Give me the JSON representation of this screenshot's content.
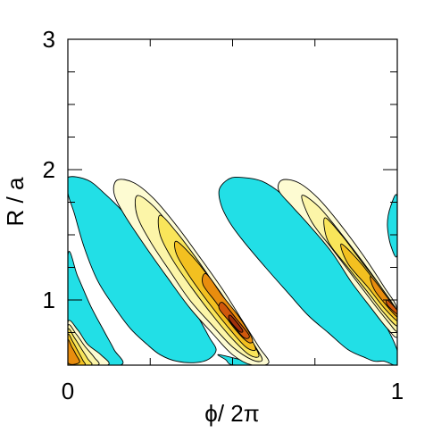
{
  "chart_data": {
    "type": "heatmap",
    "title": "",
    "xlabel": "ϕ/ 2π",
    "ylabel": "R / a",
    "xlim": [
      0,
      1
    ],
    "ylim": [
      0.5,
      3
    ],
    "x_ticks": [
      {
        "value": 0,
        "label": "0"
      },
      {
        "value": 1,
        "label": "1"
      }
    ],
    "y_ticks": [
      {
        "value": 1,
        "label": "1"
      },
      {
        "value": 2,
        "label": "2"
      },
      {
        "value": 3,
        "label": "3"
      }
    ],
    "x_minor_ticks": [
      0.25,
      0.5,
      0.75
    ],
    "y_minor_ticks": [
      0.5,
      0.75,
      1.25,
      1.5,
      1.75,
      2.25,
      2.5,
      2.75
    ],
    "grid": false,
    "legend": "none",
    "colors": {
      "negative_fill": "#22dfe6",
      "positive_levels": [
        "#fdfbd2",
        "#fcf5a8",
        "#f9e55a",
        "#f3c020",
        "#e88d0e",
        "#d0580c",
        "#a0300c"
      ],
      "contour_line": "#000000"
    },
    "features": [
      {
        "kind": "negative",
        "points": [
          [
            0.0,
            0.5
          ],
          [
            0.0,
            1.34
          ],
          [
            0.03,
            1.18
          ],
          [
            0.07,
            0.95
          ],
          [
            0.11,
            0.76
          ],
          [
            0.14,
            0.62
          ],
          [
            0.16,
            0.5
          ]
        ]
      },
      {
        "kind": "negative",
        "points": [
          [
            0.0,
            1.94
          ],
          [
            0.06,
            1.92
          ],
          [
            0.11,
            1.82
          ],
          [
            0.17,
            1.67
          ],
          [
            0.24,
            1.46
          ],
          [
            0.3,
            1.25
          ],
          [
            0.36,
            1.03
          ],
          [
            0.4,
            0.85
          ],
          [
            0.43,
            0.71
          ],
          [
            0.45,
            0.62
          ],
          [
            0.43,
            0.55
          ],
          [
            0.39,
            0.52
          ],
          [
            0.33,
            0.53
          ],
          [
            0.28,
            0.58
          ],
          [
            0.24,
            0.66
          ],
          [
            0.19,
            0.78
          ],
          [
            0.14,
            0.95
          ],
          [
            0.09,
            1.15
          ],
          [
            0.05,
            1.4
          ],
          [
            0.02,
            1.66
          ],
          [
            0.0,
            1.82
          ]
        ]
      },
      {
        "kind": "negative",
        "points": [
          [
            0.58,
            0.5
          ],
          [
            0.51,
            0.5
          ],
          [
            0.49,
            0.51
          ],
          [
            0.48,
            0.54
          ],
          [
            0.46,
            0.58
          ]
        ]
      },
      {
        "kind": "negative",
        "points": [
          [
            0.465,
            1.73
          ],
          [
            0.46,
            1.85
          ],
          [
            0.49,
            1.93
          ],
          [
            0.53,
            1.94
          ],
          [
            0.59,
            1.91
          ],
          [
            0.65,
            1.81
          ],
          [
            0.72,
            1.63
          ],
          [
            0.79,
            1.43
          ],
          [
            0.86,
            1.2
          ],
          [
            0.92,
            0.99
          ],
          [
            0.97,
            0.78
          ],
          [
            1.0,
            0.61
          ],
          [
            1.0,
            0.5
          ],
          [
            0.99,
            0.5
          ],
          [
            0.96,
            0.53
          ],
          [
            0.93,
            0.53
          ],
          [
            0.9,
            0.56
          ],
          [
            0.85,
            0.62
          ],
          [
            0.79,
            0.75
          ],
          [
            0.73,
            0.88
          ],
          [
            0.67,
            1.05
          ],
          [
            0.6,
            1.25
          ],
          [
            0.53,
            1.46
          ],
          [
            0.49,
            1.6
          ]
        ]
      },
      {
        "kind": "negative",
        "points": [
          [
            1.0,
            1.35
          ],
          [
            0.98,
            1.42
          ],
          [
            0.97,
            1.58
          ],
          [
            0.98,
            1.72
          ],
          [
            1.0,
            1.79
          ]
        ]
      },
      {
        "kind": "positive",
        "level": 0,
        "points": [
          [
            0.0,
            0.83
          ],
          [
            0.03,
            0.77
          ],
          [
            0.06,
            0.66
          ],
          [
            0.1,
            0.58
          ],
          [
            0.12,
            0.5
          ],
          [
            0.0,
            0.5
          ]
        ]
      },
      {
        "kind": "positive",
        "level": 1,
        "points": [
          [
            0.0,
            0.8
          ],
          [
            0.025,
            0.74
          ],
          [
            0.05,
            0.65
          ],
          [
            0.08,
            0.56
          ],
          [
            0.09,
            0.5
          ],
          [
            0.0,
            0.5
          ]
        ]
      },
      {
        "kind": "positive",
        "level": 2,
        "points": [
          [
            0.0,
            0.77
          ],
          [
            0.02,
            0.71
          ],
          [
            0.04,
            0.63
          ],
          [
            0.06,
            0.55
          ],
          [
            0.07,
            0.5
          ],
          [
            0.0,
            0.5
          ]
        ]
      },
      {
        "kind": "positive",
        "level": 3,
        "points": [
          [
            0.0,
            0.73
          ],
          [
            0.015,
            0.68
          ],
          [
            0.03,
            0.61
          ],
          [
            0.045,
            0.54
          ],
          [
            0.05,
            0.5
          ],
          [
            0.0,
            0.5
          ]
        ]
      },
      {
        "kind": "positive",
        "level": 4,
        "points": [
          [
            0.0,
            0.69
          ],
          [
            0.012,
            0.64
          ],
          [
            0.025,
            0.58
          ],
          [
            0.035,
            0.52
          ],
          [
            0.0,
            0.52
          ]
        ]
      },
      {
        "kind": "positive",
        "level": 0,
        "points": [
          [
            0.15,
            1.92
          ],
          [
            0.2,
            1.9
          ],
          [
            0.26,
            1.78
          ],
          [
            0.33,
            1.57
          ],
          [
            0.4,
            1.33
          ],
          [
            0.47,
            1.08
          ],
          [
            0.53,
            0.84
          ],
          [
            0.58,
            0.64
          ],
          [
            0.61,
            0.52
          ],
          [
            0.56,
            0.5
          ],
          [
            0.5,
            0.58
          ],
          [
            0.44,
            0.74
          ],
          [
            0.37,
            0.94
          ],
          [
            0.3,
            1.18
          ],
          [
            0.23,
            1.43
          ],
          [
            0.17,
            1.66
          ],
          [
            0.14,
            1.82
          ]
        ]
      },
      {
        "kind": "positive",
        "level": 1,
        "points": [
          [
            0.21,
            1.8
          ],
          [
            0.26,
            1.72
          ],
          [
            0.32,
            1.54
          ],
          [
            0.39,
            1.31
          ],
          [
            0.46,
            1.07
          ],
          [
            0.52,
            0.84
          ],
          [
            0.57,
            0.64
          ],
          [
            0.59,
            0.54
          ],
          [
            0.56,
            0.54
          ],
          [
            0.5,
            0.64
          ],
          [
            0.44,
            0.8
          ],
          [
            0.37,
            1.0
          ],
          [
            0.31,
            1.22
          ],
          [
            0.25,
            1.45
          ],
          [
            0.21,
            1.65
          ]
        ]
      },
      {
        "kind": "positive",
        "level": 2,
        "points": [
          [
            0.28,
            1.65
          ],
          [
            0.33,
            1.52
          ],
          [
            0.39,
            1.32
          ],
          [
            0.45,
            1.1
          ],
          [
            0.51,
            0.88
          ],
          [
            0.56,
            0.68
          ],
          [
            0.58,
            0.57
          ],
          [
            0.55,
            0.58
          ],
          [
            0.5,
            0.7
          ],
          [
            0.44,
            0.88
          ],
          [
            0.38,
            1.08
          ],
          [
            0.32,
            1.3
          ],
          [
            0.28,
            1.5
          ]
        ]
      },
      {
        "kind": "positive",
        "level": 3,
        "points": [
          [
            0.33,
            1.45
          ],
          [
            0.39,
            1.3
          ],
          [
            0.45,
            1.1
          ],
          [
            0.5,
            0.92
          ],
          [
            0.55,
            0.73
          ],
          [
            0.57,
            0.62
          ],
          [
            0.54,
            0.64
          ],
          [
            0.49,
            0.78
          ],
          [
            0.43,
            0.97
          ],
          [
            0.37,
            1.18
          ],
          [
            0.33,
            1.35
          ]
        ]
      },
      {
        "kind": "positive",
        "level": 4,
        "points": [
          [
            0.42,
            1.2
          ],
          [
            0.47,
            1.03
          ],
          [
            0.52,
            0.87
          ],
          [
            0.56,
            0.7
          ],
          [
            0.545,
            0.68
          ],
          [
            0.5,
            0.8
          ],
          [
            0.45,
            0.98
          ],
          [
            0.41,
            1.12
          ]
        ]
      },
      {
        "kind": "positive",
        "level": 5,
        "points": [
          [
            0.47,
            0.98
          ],
          [
            0.51,
            0.86
          ],
          [
            0.55,
            0.73
          ],
          [
            0.535,
            0.71
          ],
          [
            0.5,
            0.81
          ],
          [
            0.46,
            0.93
          ]
        ]
      },
      {
        "kind": "positive",
        "level": 6,
        "points": [
          [
            0.495,
            0.88
          ],
          [
            0.53,
            0.77
          ],
          [
            0.52,
            0.76
          ],
          [
            0.49,
            0.85
          ]
        ]
      },
      {
        "kind": "positive",
        "level": 0,
        "points": [
          [
            0.65,
            1.92
          ],
          [
            0.7,
            1.9
          ],
          [
            0.76,
            1.78
          ],
          [
            0.83,
            1.57
          ],
          [
            0.9,
            1.33
          ],
          [
            0.96,
            1.1
          ],
          [
            1.0,
            0.93
          ],
          [
            1.0,
            0.72
          ],
          [
            0.97,
            0.78
          ],
          [
            0.92,
            0.94
          ],
          [
            0.86,
            1.14
          ],
          [
            0.8,
            1.37
          ],
          [
            0.73,
            1.58
          ],
          [
            0.68,
            1.72
          ],
          [
            0.64,
            1.84
          ]
        ]
      },
      {
        "kind": "positive",
        "level": 1,
        "points": [
          [
            0.71,
            1.8
          ],
          [
            0.76,
            1.72
          ],
          [
            0.82,
            1.54
          ],
          [
            0.89,
            1.31
          ],
          [
            0.95,
            1.1
          ],
          [
            1.0,
            0.9
          ],
          [
            1.0,
            0.76
          ],
          [
            0.97,
            0.84
          ],
          [
            0.92,
            1.0
          ],
          [
            0.86,
            1.2
          ],
          [
            0.8,
            1.4
          ],
          [
            0.74,
            1.6
          ]
        ]
      },
      {
        "kind": "positive",
        "level": 2,
        "points": [
          [
            0.78,
            1.63
          ],
          [
            0.83,
            1.5
          ],
          [
            0.89,
            1.3
          ],
          [
            0.95,
            1.1
          ],
          [
            1.0,
            0.91
          ],
          [
            1.0,
            0.8
          ],
          [
            0.96,
            0.9
          ],
          [
            0.91,
            1.06
          ],
          [
            0.85,
            1.25
          ],
          [
            0.79,
            1.45
          ]
        ]
      },
      {
        "kind": "positive",
        "level": 3,
        "points": [
          [
            0.83,
            1.43
          ],
          [
            0.89,
            1.28
          ],
          [
            0.95,
            1.08
          ],
          [
            1.0,
            0.91
          ],
          [
            1.0,
            0.84
          ],
          [
            0.96,
            0.94
          ],
          [
            0.91,
            1.1
          ],
          [
            0.85,
            1.28
          ]
        ]
      },
      {
        "kind": "positive",
        "level": 4,
        "points": [
          [
            0.92,
            1.18
          ],
          [
            0.97,
            1.02
          ],
          [
            1.0,
            0.92
          ],
          [
            1.0,
            0.87
          ],
          [
            0.97,
            0.95
          ],
          [
            0.93,
            1.08
          ]
        ]
      },
      {
        "kind": "positive",
        "level": 5,
        "points": [
          [
            0.97,
            1.0
          ],
          [
            1.0,
            0.92
          ],
          [
            1.0,
            0.89
          ],
          [
            0.97,
            0.96
          ]
        ]
      }
    ]
  }
}
